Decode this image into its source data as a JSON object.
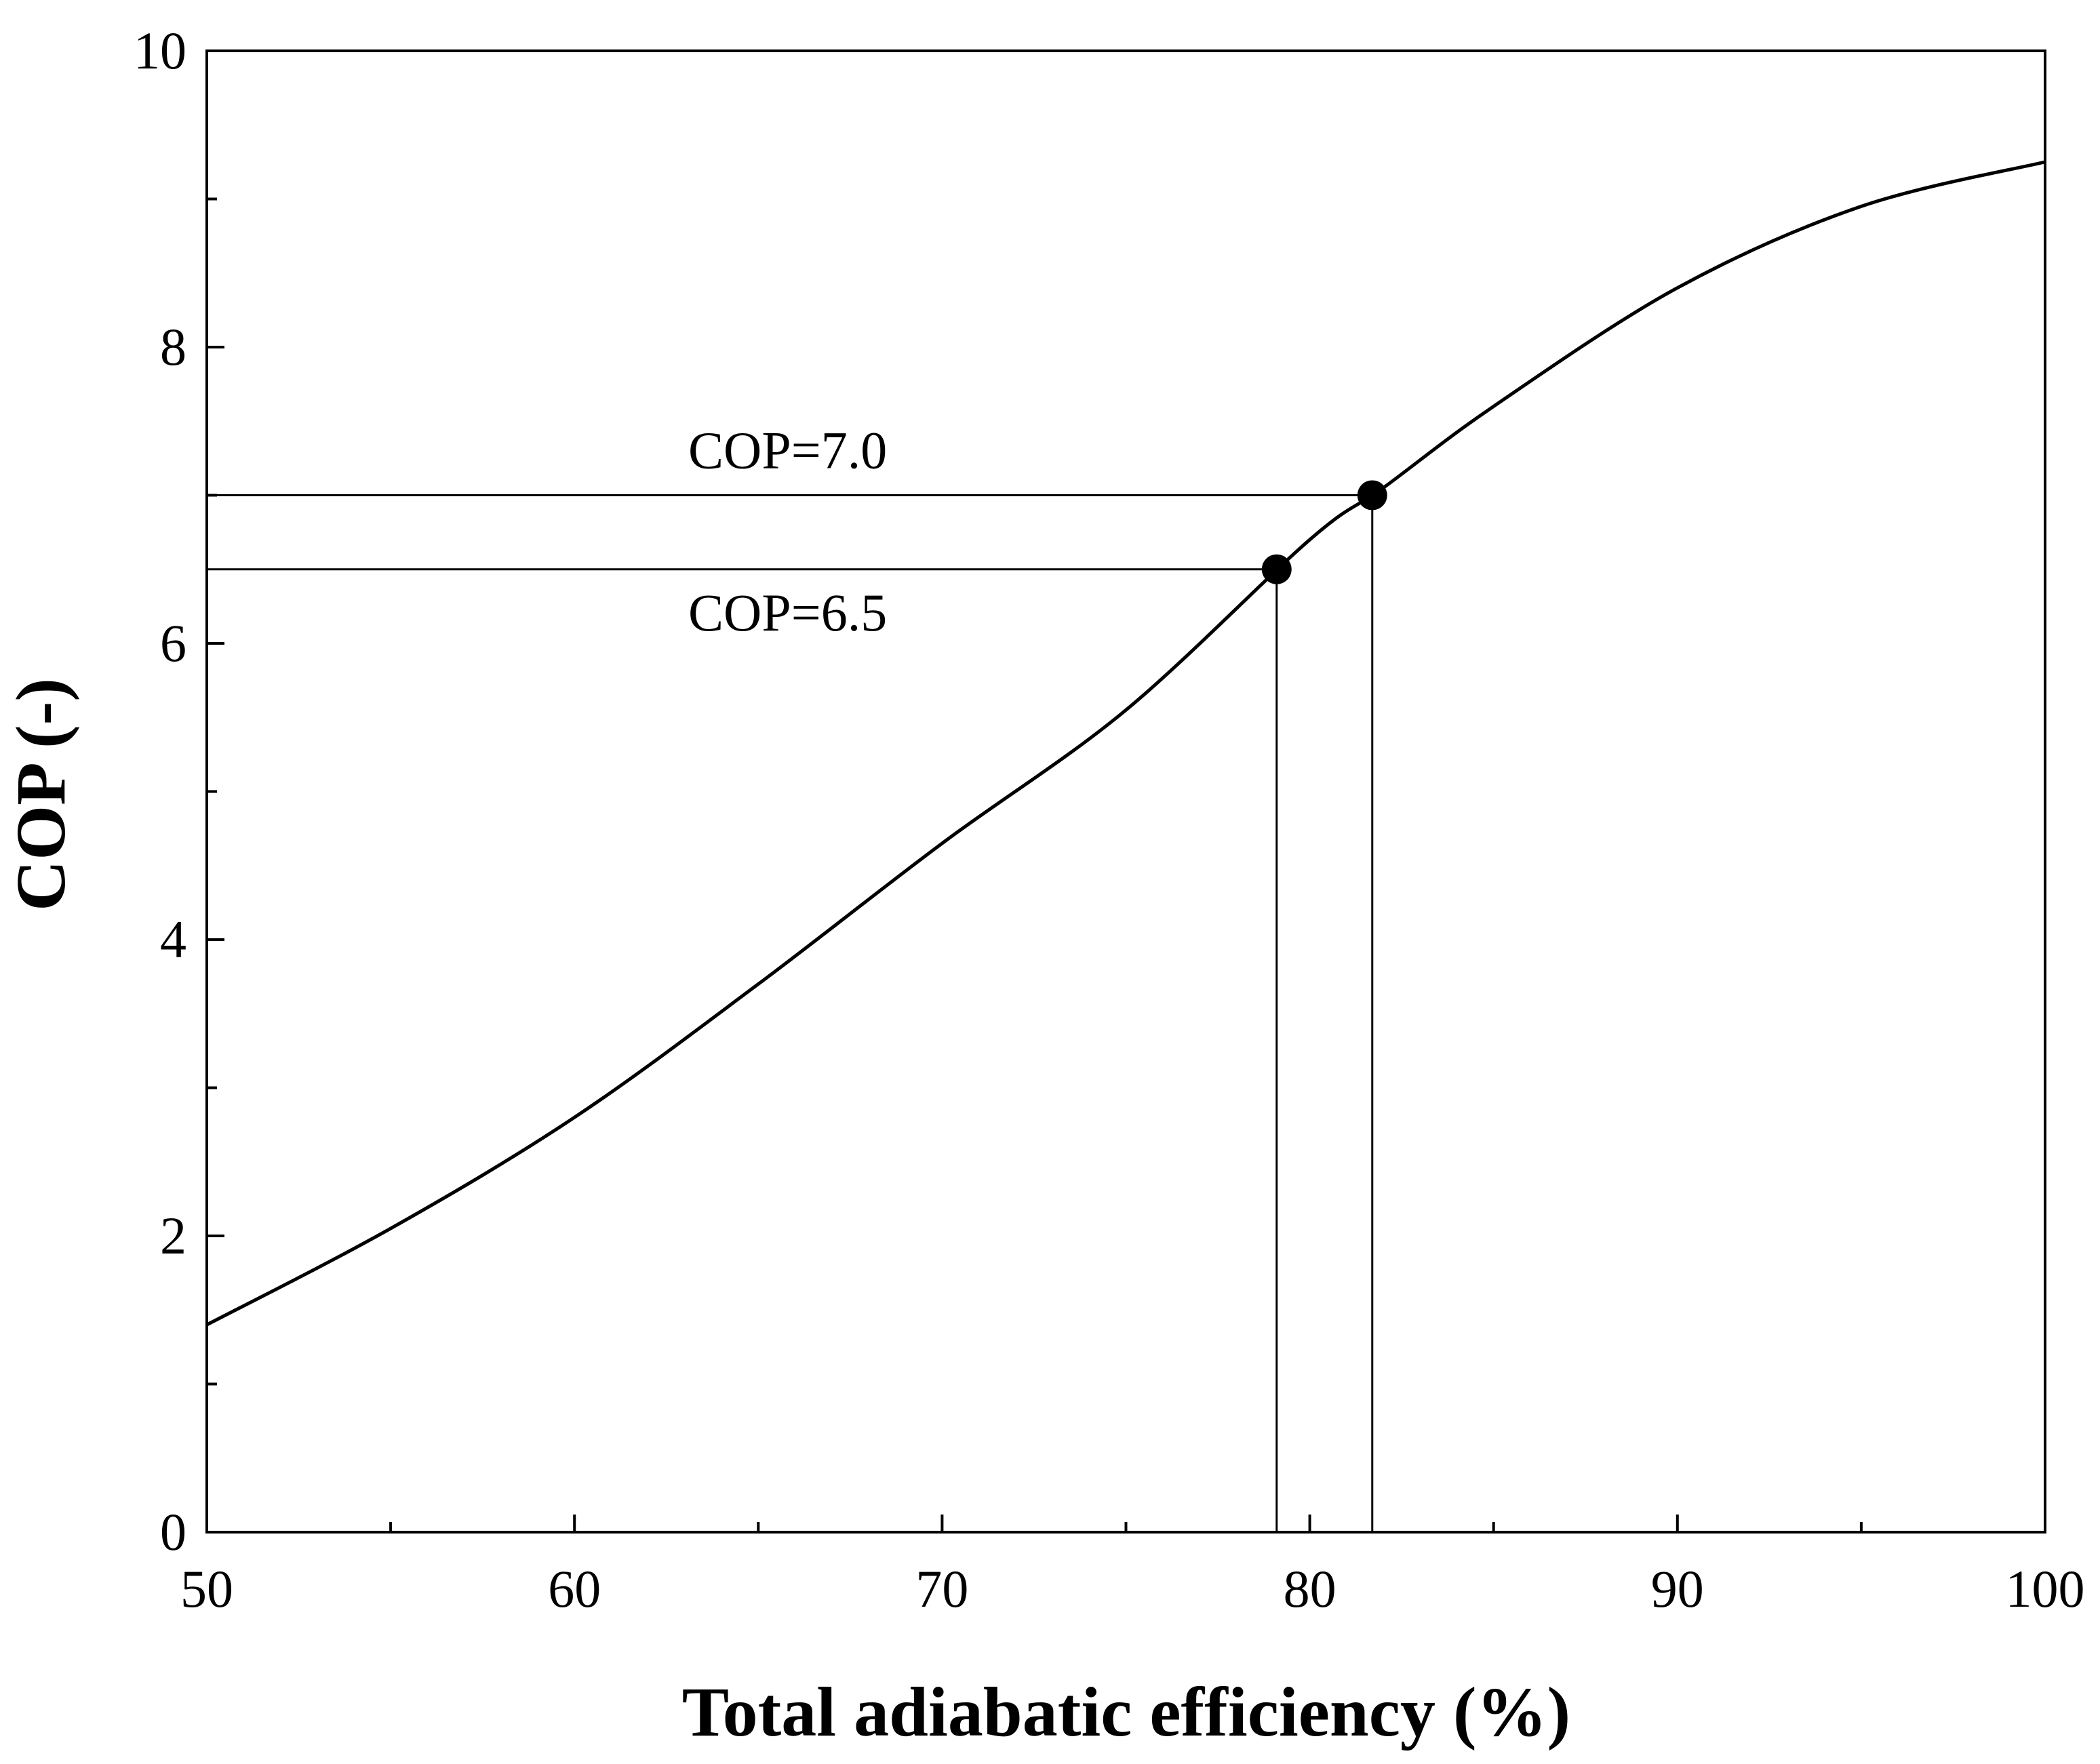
{
  "chart_data": {
    "type": "line",
    "title": "",
    "xlabel": "Total adiabatic efficiency (%)",
    "ylabel": "COP (-)",
    "xlim": [
      50,
      100
    ],
    "ylim": [
      0,
      10
    ],
    "x_ticks": [
      50,
      60,
      70,
      80,
      90,
      100
    ],
    "y_ticks": [
      0,
      2,
      4,
      6,
      8,
      10
    ],
    "x_tick_labels": [
      "50",
      "60",
      "70",
      "80",
      "90",
      "100"
    ],
    "y_tick_labels": [
      "0",
      "2",
      "4",
      "6",
      "8",
      "10"
    ],
    "grid": false,
    "legend": "none",
    "series": [
      {
        "x": [
          50,
          55,
          60,
          65,
          70,
          75,
          80,
          82,
          85,
          90,
          95,
          100
        ],
        "y": [
          1.4,
          2.05,
          2.8,
          3.7,
          4.65,
          5.55,
          6.7,
          7.05,
          7.6,
          8.4,
          8.95,
          9.25
        ]
      }
    ],
    "markers": [
      {
        "x": 79.1,
        "y": 6.5
      },
      {
        "x": 81.7,
        "y": 7.0
      }
    ],
    "reference_lines": [
      {
        "y": 7.0,
        "x_end": 81.7,
        "label": "COP=7.0"
      },
      {
        "y": 6.5,
        "x_end": 79.1,
        "label": "COP=6.5"
      }
    ],
    "colors": {
      "line": "#000000",
      "marker": "#000000",
      "axes": "#000000"
    }
  }
}
